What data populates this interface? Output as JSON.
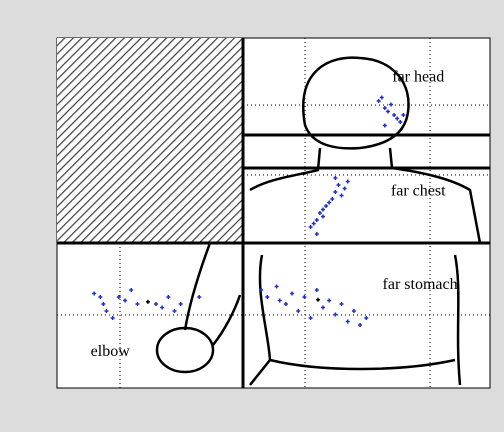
{
  "chart_data": {
    "type": "scatter",
    "xlim": [
      0,
      7
    ],
    "ylim": [
      0,
      5
    ],
    "series": [
      {
        "color": "#2030d0",
        "x": [
          5.2,
          5.3,
          5.35,
          5.45,
          5.5,
          5.55,
          5.4,
          5.3,
          5.6,
          5.25,
          4.1,
          4.2,
          4.25,
          4.3,
          4.4,
          4.45,
          4.5,
          4.55,
          4.6,
          4.65,
          4.3,
          4.2,
          4.7,
          4.15,
          4.35,
          4.5,
          3.3,
          3.4,
          3.55,
          3.7,
          3.8,
          3.9,
          4.0,
          4.1,
          4.3,
          4.4,
          4.5,
          4.6,
          4.7,
          4.8,
          4.9,
          5.0,
          3.6,
          4.2,
          0.6,
          0.7,
          0.8,
          0.9,
          1.0,
          1.1,
          1.2,
          1.3,
          1.6,
          1.7,
          1.8,
          1.9,
          2.0,
          2.3,
          0.75
        ],
        "y": [
          4.1,
          4.0,
          3.95,
          3.9,
          3.85,
          3.8,
          4.05,
          3.75,
          3.9,
          4.15,
          2.3,
          2.4,
          2.5,
          2.55,
          2.65,
          2.7,
          2.8,
          2.9,
          2.75,
          2.85,
          2.45,
          2.2,
          2.95,
          2.35,
          2.6,
          3.0,
          1.4,
          1.3,
          1.45,
          1.2,
          1.35,
          1.1,
          1.3,
          1.0,
          1.15,
          1.25,
          1.05,
          1.2,
          0.95,
          1.1,
          0.9,
          1.0,
          1.25,
          1.4,
          1.35,
          1.3,
          1.1,
          1.0,
          1.3,
          1.25,
          1.4,
          1.2,
          1.2,
          1.15,
          1.3,
          1.1,
          1.2,
          1.3,
          1.2
        ]
      },
      {
        "color": "#000000",
        "x": [
          1.47,
          4.22
        ],
        "y": [
          1.23,
          1.26
        ]
      }
    ],
    "annotations": [
      {
        "text": "far head",
        "x": 5.84,
        "y": 4.43
      },
      {
        "text": "far chest",
        "x": 5.84,
        "y": 2.8
      },
      {
        "text": "far stomach",
        "x": 5.87,
        "y": 1.47
      },
      {
        "text": "elbow",
        "x": 0.86,
        "y": 0.51
      }
    ]
  }
}
